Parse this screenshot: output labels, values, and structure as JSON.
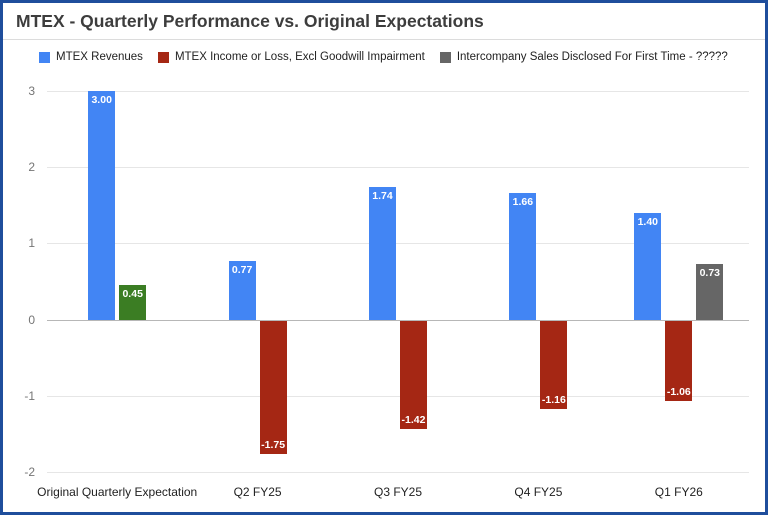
{
  "window": {
    "border_color": "#1f4e9c",
    "background": "#ffffff"
  },
  "title": "MTEX - Quarterly Performance vs. Original Expectations",
  "chart_data": {
    "type": "bar",
    "title": "MTEX - Quarterly Performance vs. Original Expectations",
    "categories": [
      "Original Quarterly Expectation",
      "Q2 FY25",
      "Q3 FY25",
      "Q4 FY25",
      "Q1 FY26"
    ],
    "ylim": [
      -2,
      3
    ],
    "yticks": [
      3,
      2,
      1,
      0,
      -1,
      -2
    ],
    "grid": true,
    "legend_position": "top",
    "series": [
      {
        "name": "MTEX Revenues",
        "color": "#4285f4",
        "values": [
          3.0,
          0.77,
          1.74,
          1.66,
          1.4
        ],
        "labels": [
          "3.00",
          "0.77",
          "1.74",
          "1.66",
          "1.40"
        ]
      },
      {
        "name": "MTEX Income or Loss, Excl Goodwill Impairment",
        "color": "#a52714",
        "values": [
          0.45,
          -1.75,
          -1.42,
          -1.16,
          -1.06
        ],
        "labels": [
          "0.45",
          "-1.75",
          "-1.42",
          "-1.16",
          "-1.06"
        ],
        "point_colors": [
          "#3b7d23",
          null,
          null,
          null,
          null
        ]
      },
      {
        "name": "Intercompany Sales Disclosed For First Time - ?????",
        "color": "#666666",
        "values": [
          null,
          null,
          null,
          null,
          0.73
        ],
        "labels": [
          null,
          null,
          null,
          null,
          "0.73"
        ]
      }
    ],
    "style": {
      "grid_color": "#e6e6e6",
      "zero_line_color": "#b7b7b7",
      "ytick_color": "#757575",
      "xtick_color": "#1f1f1f",
      "title_color": "#3d3d3d",
      "bar_label_color": "#ffffff"
    }
  }
}
